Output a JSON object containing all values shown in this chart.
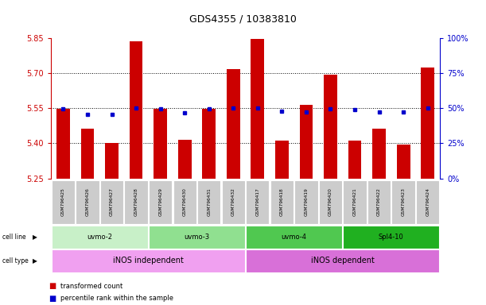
{
  "title": "GDS4355 / 10383810",
  "samples": [
    "GSM796425",
    "GSM796426",
    "GSM796427",
    "GSM796428",
    "GSM796429",
    "GSM796430",
    "GSM796431",
    "GSM796432",
    "GSM796417",
    "GSM796418",
    "GSM796419",
    "GSM796420",
    "GSM796421",
    "GSM796422",
    "GSM796423",
    "GSM796424"
  ],
  "red_values": [
    5.548,
    5.463,
    5.4,
    5.835,
    5.548,
    5.415,
    5.548,
    5.718,
    5.848,
    5.413,
    5.563,
    5.695,
    5.413,
    5.463,
    5.395,
    5.725
  ],
  "blue_values": [
    5.548,
    5.525,
    5.523,
    5.552,
    5.547,
    5.53,
    5.548,
    5.552,
    5.552,
    5.538,
    5.533,
    5.548,
    5.543,
    5.535,
    5.533,
    5.551
  ],
  "ylim": [
    5.25,
    5.85
  ],
  "y_ticks": [
    5.25,
    5.4,
    5.55,
    5.7,
    5.85
  ],
  "y_right_ticks": [
    0,
    25,
    50,
    75,
    100
  ],
  "y_right_tick_labels": [
    "0%",
    "25%",
    "50%",
    "75%",
    "100%"
  ],
  "dotted_lines": [
    5.4,
    5.55,
    5.7
  ],
  "cell_lines": [
    {
      "label": "uvmo-2",
      "start": 0,
      "end": 3,
      "color": "#c8f0c8"
    },
    {
      "label": "uvmo-3",
      "start": 4,
      "end": 7,
      "color": "#90e090"
    },
    {
      "label": "uvmo-4",
      "start": 8,
      "end": 11,
      "color": "#50c850"
    },
    {
      "label": "Spl4-10",
      "start": 12,
      "end": 15,
      "color": "#20b020"
    }
  ],
  "cell_types": [
    {
      "label": "iNOS independent",
      "start": 0,
      "end": 7,
      "color": "#f0a0f0"
    },
    {
      "label": "iNOS dependent",
      "start": 8,
      "end": 15,
      "color": "#d870d8"
    }
  ],
  "bar_color": "#cc0000",
  "dot_color": "#0000cc",
  "left_axis_color": "#cc0000",
  "right_axis_color": "#0000cc",
  "background_color": "#ffffff",
  "sample_bg_color": "#cccccc"
}
